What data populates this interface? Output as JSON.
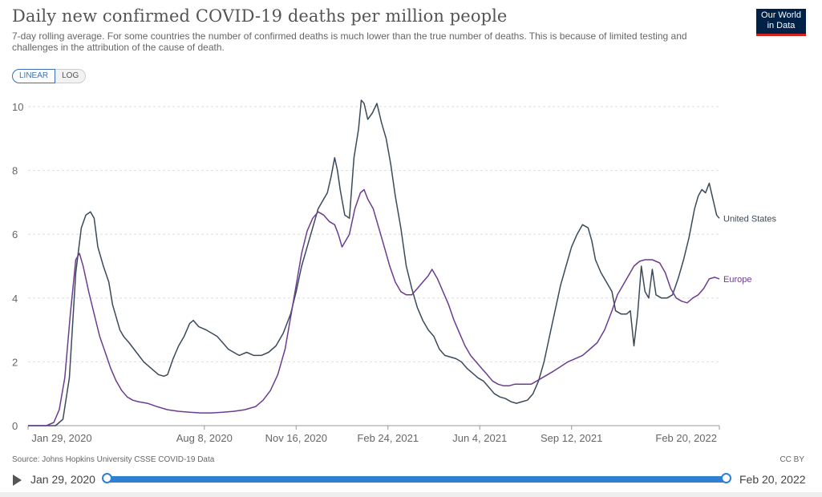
{
  "brand": {
    "logo_line1": "Our World",
    "logo_line2": "in Data",
    "logo_bg": "#002147",
    "logo_accent": "#ce261e"
  },
  "header": {
    "title": "Daily new confirmed COVID-19 deaths per million people",
    "subtitle": "7-day rolling average. For some countries the number of confirmed deaths is much lower than the true number of deaths. This is because of limited testing and challenges in the attribution of the cause of death."
  },
  "controls": {
    "linear_label": "LINEAR",
    "log_label": "LOG",
    "active_scale": "linear"
  },
  "chart_data": {
    "type": "line",
    "title": "Daily new confirmed COVID-19 deaths per million people",
    "ylabel": "",
    "xlabel": "",
    "x_unit": "days since Jan 29, 2020",
    "x_range": [
      0,
      753
    ],
    "ylim": [
      0,
      10
    ],
    "y_ticks": [
      0,
      2,
      4,
      6,
      8,
      10
    ],
    "x_ticks": [
      {
        "day": 0,
        "label": "Jan 29, 2020"
      },
      {
        "day": 192,
        "label": "Aug 8, 2020"
      },
      {
        "day": 292,
        "label": "Nov 16, 2020"
      },
      {
        "day": 392,
        "label": "Feb 24, 2021"
      },
      {
        "day": 492,
        "label": "Jun 4, 2021"
      },
      {
        "day": 592,
        "label": "Sep 12, 2021"
      },
      {
        "day": 753,
        "label": "Feb 20, 2022"
      }
    ],
    "grid": true,
    "series": [
      {
        "name": "United States",
        "color": "#3b4a5a",
        "points": [
          [
            0,
            0
          ],
          [
            30,
            0
          ],
          [
            38,
            0.2
          ],
          [
            45,
            1.5
          ],
          [
            52,
            4.8
          ],
          [
            58,
            6.2
          ],
          [
            63,
            6.6
          ],
          [
            68,
            6.7
          ],
          [
            72,
            6.5
          ],
          [
            76,
            5.6
          ],
          [
            82,
            5.0
          ],
          [
            88,
            4.5
          ],
          [
            92,
            3.8
          ],
          [
            96,
            3.4
          ],
          [
            100,
            3.0
          ],
          [
            104,
            2.8
          ],
          [
            110,
            2.6
          ],
          [
            118,
            2.3
          ],
          [
            126,
            2.0
          ],
          [
            134,
            1.8
          ],
          [
            142,
            1.6
          ],
          [
            148,
            1.55
          ],
          [
            152,
            1.6
          ],
          [
            158,
            2.1
          ],
          [
            164,
            2.5
          ],
          [
            170,
            2.8
          ],
          [
            176,
            3.2
          ],
          [
            180,
            3.3
          ],
          [
            186,
            3.1
          ],
          [
            194,
            3.0
          ],
          [
            200,
            2.9
          ],
          [
            206,
            2.8
          ],
          [
            212,
            2.6
          ],
          [
            218,
            2.4
          ],
          [
            224,
            2.3
          ],
          [
            230,
            2.2
          ],
          [
            238,
            2.3
          ],
          [
            246,
            2.2
          ],
          [
            254,
            2.2
          ],
          [
            262,
            2.3
          ],
          [
            270,
            2.5
          ],
          [
            278,
            2.9
          ],
          [
            286,
            3.5
          ],
          [
            292,
            4.2
          ],
          [
            298,
            5.0
          ],
          [
            304,
            5.6
          ],
          [
            310,
            6.2
          ],
          [
            316,
            6.8
          ],
          [
            320,
            7.0
          ],
          [
            326,
            7.3
          ],
          [
            330,
            7.8
          ],
          [
            334,
            8.4
          ],
          [
            337,
            8.0
          ],
          [
            340,
            7.4
          ],
          [
            345,
            6.6
          ],
          [
            350,
            6.5
          ],
          [
            355,
            8.4
          ],
          [
            360,
            9.3
          ],
          [
            363,
            10.2
          ],
          [
            366,
            10.1
          ],
          [
            370,
            9.6
          ],
          [
            375,
            9.8
          ],
          [
            380,
            10.1
          ],
          [
            385,
            9.5
          ],
          [
            390,
            9.0
          ],
          [
            395,
            8.2
          ],
          [
            400,
            7.2
          ],
          [
            406,
            6.2
          ],
          [
            412,
            5.0
          ],
          [
            418,
            4.3
          ],
          [
            424,
            3.7
          ],
          [
            430,
            3.3
          ],
          [
            436,
            3.0
          ],
          [
            442,
            2.8
          ],
          [
            448,
            2.4
          ],
          [
            454,
            2.2
          ],
          [
            460,
            2.15
          ],
          [
            466,
            2.1
          ],
          [
            472,
            2.0
          ],
          [
            478,
            1.8
          ],
          [
            484,
            1.65
          ],
          [
            490,
            1.5
          ],
          [
            496,
            1.4
          ],
          [
            502,
            1.2
          ],
          [
            508,
            1.0
          ],
          [
            514,
            0.9
          ],
          [
            520,
            0.85
          ],
          [
            526,
            0.75
          ],
          [
            532,
            0.7
          ],
          [
            538,
            0.75
          ],
          [
            544,
            0.8
          ],
          [
            550,
            1.0
          ],
          [
            556,
            1.4
          ],
          [
            562,
            2.0
          ],
          [
            568,
            2.8
          ],
          [
            574,
            3.6
          ],
          [
            580,
            4.4
          ],
          [
            586,
            5.0
          ],
          [
            592,
            5.6
          ],
          [
            598,
            6.0
          ],
          [
            604,
            6.3
          ],
          [
            610,
            6.2
          ],
          [
            614,
            5.8
          ],
          [
            618,
            5.2
          ],
          [
            624,
            4.8
          ],
          [
            630,
            4.5
          ],
          [
            636,
            4.2
          ],
          [
            640,
            3.6
          ],
          [
            646,
            3.5
          ],
          [
            652,
            3.5
          ],
          [
            656,
            3.6
          ],
          [
            660,
            2.5
          ],
          [
            664,
            3.5
          ],
          [
            668,
            5.0
          ],
          [
            672,
            4.2
          ],
          [
            676,
            4.0
          ],
          [
            680,
            4.9
          ],
          [
            684,
            4.1
          ],
          [
            690,
            4.0
          ],
          [
            696,
            4.0
          ],
          [
            702,
            4.1
          ],
          [
            708,
            4.6
          ],
          [
            714,
            5.2
          ],
          [
            720,
            5.9
          ],
          [
            726,
            6.8
          ],
          [
            730,
            7.2
          ],
          [
            734,
            7.4
          ],
          [
            738,
            7.3
          ],
          [
            742,
            7.6
          ],
          [
            746,
            7.1
          ],
          [
            750,
            6.6
          ],
          [
            753,
            6.5
          ]
        ]
      },
      {
        "name": "Europe",
        "color": "#6b3d8e",
        "points": [
          [
            0,
            0
          ],
          [
            20,
            0
          ],
          [
            28,
            0.1
          ],
          [
            34,
            0.5
          ],
          [
            40,
            1.5
          ],
          [
            46,
            3.5
          ],
          [
            52,
            5.2
          ],
          [
            56,
            5.4
          ],
          [
            60,
            5.0
          ],
          [
            66,
            4.2
          ],
          [
            72,
            3.5
          ],
          [
            78,
            2.8
          ],
          [
            84,
            2.3
          ],
          [
            90,
            1.8
          ],
          [
            96,
            1.4
          ],
          [
            102,
            1.1
          ],
          [
            108,
            0.9
          ],
          [
            114,
            0.8
          ],
          [
            120,
            0.75
          ],
          [
            130,
            0.7
          ],
          [
            140,
            0.6
          ],
          [
            152,
            0.5
          ],
          [
            164,
            0.45
          ],
          [
            176,
            0.42
          ],
          [
            188,
            0.4
          ],
          [
            200,
            0.4
          ],
          [
            212,
            0.42
          ],
          [
            224,
            0.45
          ],
          [
            236,
            0.5
          ],
          [
            248,
            0.6
          ],
          [
            256,
            0.8
          ],
          [
            264,
            1.1
          ],
          [
            272,
            1.6
          ],
          [
            280,
            2.4
          ],
          [
            286,
            3.4
          ],
          [
            292,
            4.4
          ],
          [
            298,
            5.4
          ],
          [
            304,
            6.1
          ],
          [
            310,
            6.5
          ],
          [
            316,
            6.7
          ],
          [
            322,
            6.6
          ],
          [
            328,
            6.4
          ],
          [
            334,
            6.3
          ],
          [
            338,
            6.0
          ],
          [
            342,
            5.6
          ],
          [
            346,
            5.8
          ],
          [
            350,
            6.0
          ],
          [
            356,
            6.8
          ],
          [
            362,
            7.3
          ],
          [
            366,
            7.4
          ],
          [
            370,
            7.1
          ],
          [
            376,
            6.8
          ],
          [
            382,
            6.2
          ],
          [
            388,
            5.6
          ],
          [
            394,
            5.0
          ],
          [
            400,
            4.5
          ],
          [
            406,
            4.2
          ],
          [
            412,
            4.1
          ],
          [
            418,
            4.1
          ],
          [
            424,
            4.3
          ],
          [
            430,
            4.5
          ],
          [
            436,
            4.7
          ],
          [
            440,
            4.9
          ],
          [
            446,
            4.6
          ],
          [
            452,
            4.2
          ],
          [
            458,
            3.8
          ],
          [
            464,
            3.3
          ],
          [
            470,
            2.9
          ],
          [
            476,
            2.5
          ],
          [
            482,
            2.2
          ],
          [
            488,
            2.0
          ],
          [
            494,
            1.8
          ],
          [
            500,
            1.6
          ],
          [
            506,
            1.4
          ],
          [
            512,
            1.3
          ],
          [
            518,
            1.25
          ],
          [
            524,
            1.25
          ],
          [
            530,
            1.3
          ],
          [
            536,
            1.3
          ],
          [
            542,
            1.3
          ],
          [
            548,
            1.3
          ],
          [
            554,
            1.4
          ],
          [
            560,
            1.5
          ],
          [
            566,
            1.6
          ],
          [
            572,
            1.7
          ],
          [
            580,
            1.85
          ],
          [
            588,
            2.0
          ],
          [
            596,
            2.1
          ],
          [
            604,
            2.2
          ],
          [
            612,
            2.4
          ],
          [
            620,
            2.6
          ],
          [
            628,
            3.0
          ],
          [
            636,
            3.6
          ],
          [
            642,
            4.1
          ],
          [
            648,
            4.4
          ],
          [
            654,
            4.7
          ],
          [
            660,
            5.0
          ],
          [
            666,
            5.15
          ],
          [
            672,
            5.2
          ],
          [
            680,
            5.2
          ],
          [
            688,
            5.1
          ],
          [
            694,
            4.8
          ],
          [
            700,
            4.3
          ],
          [
            706,
            4.0
          ],
          [
            712,
            3.9
          ],
          [
            718,
            3.85
          ],
          [
            724,
            4.0
          ],
          [
            730,
            4.1
          ],
          [
            736,
            4.3
          ],
          [
            742,
            4.6
          ],
          [
            748,
            4.65
          ],
          [
            753,
            4.6
          ]
        ]
      }
    ]
  },
  "footer": {
    "source": "Source: Johns Hopkins University CSSE COVID-19 Data",
    "license": "CC BY"
  },
  "timeline": {
    "start_label": "Jan 29, 2020",
    "end_label": "Feb 20, 2022",
    "track_color": "#2f80d3"
  }
}
